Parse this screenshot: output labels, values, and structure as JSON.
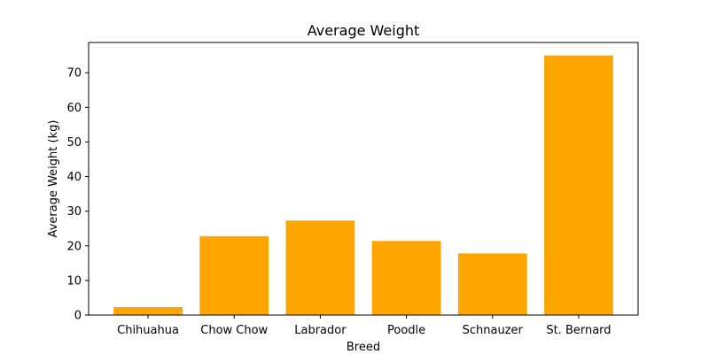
{
  "chart_data": {
    "type": "bar",
    "title": "Average Weight",
    "xlabel": "Breed",
    "ylabel": "Average Weight (kg)",
    "categories": [
      "Chihuahua",
      "Chow Chow",
      "Labrador",
      "Poodle",
      "Schnauzer",
      "St. Bernard"
    ],
    "values": [
      2.3,
      22.8,
      27.3,
      21.4,
      17.8,
      75.0
    ],
    "ylim": [
      0,
      78.75
    ],
    "yticks": [
      0,
      10,
      20,
      30,
      40,
      50,
      60,
      70
    ],
    "grid": false,
    "legend": "none",
    "bar_color": "#ffa500"
  }
}
